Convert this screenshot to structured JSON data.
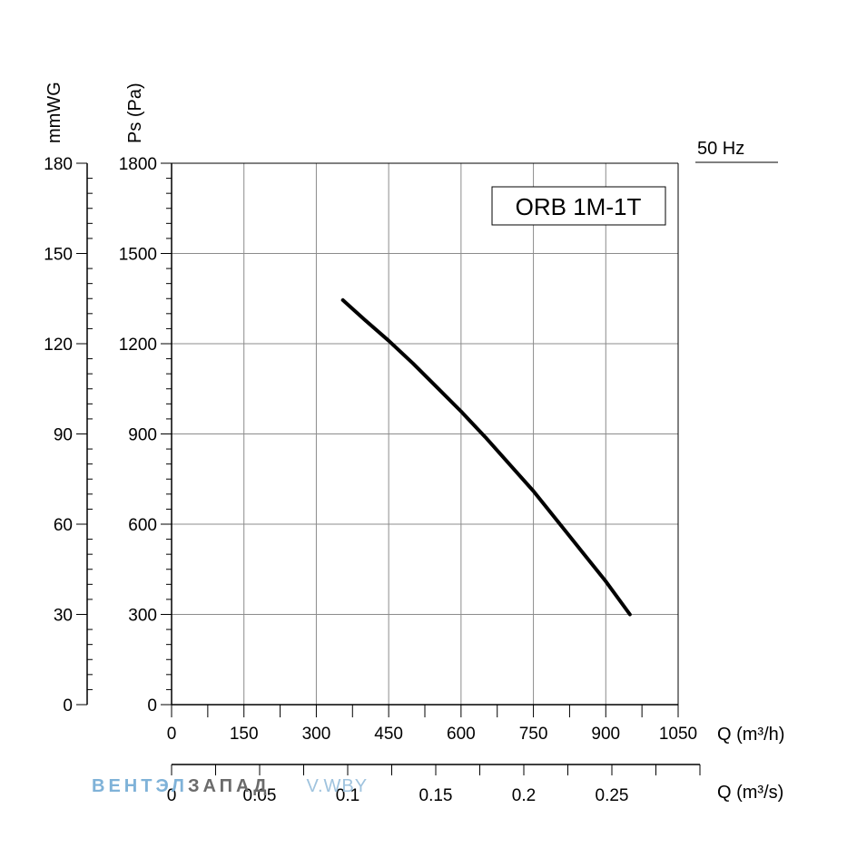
{
  "chart_data": {
    "type": "line",
    "title": "ORB 1M-1T",
    "frequency_label": "50 Hz",
    "ylabel_primary": "Ps (Pa)",
    "ylabel_secondary": "mmWG",
    "xlabel_primary": "Q (m³/h)",
    "xlabel_secondary": "Q (m³/s)",
    "xlim": [
      0,
      1050
    ],
    "ylim": [
      0,
      1800
    ],
    "x_ticks": [
      0,
      150,
      300,
      450,
      600,
      750,
      900,
      1050
    ],
    "y_ticks": [
      0,
      300,
      600,
      900,
      1200,
      1500,
      1800
    ],
    "y2_ticks": [
      0,
      30,
      60,
      90,
      120,
      150,
      180
    ],
    "x2_ticks": [
      "0",
      "0.05",
      "0.1",
      "0.15",
      "0.2",
      "0.25"
    ],
    "grid": true,
    "series": [
      {
        "name": "ORB 1M-1T",
        "x": [
          355,
          400,
          450,
          500,
          550,
          600,
          650,
          700,
          750,
          800,
          850,
          900,
          950
        ],
        "y": [
          1345,
          1280,
          1210,
          1135,
          1055,
          975,
          890,
          800,
          710,
          610,
          510,
          410,
          300
        ]
      }
    ]
  },
  "watermark": {
    "part1": "ВЕНТЭЛ",
    "part2": "ЗАПАД",
    "part3": "V.WBY"
  }
}
